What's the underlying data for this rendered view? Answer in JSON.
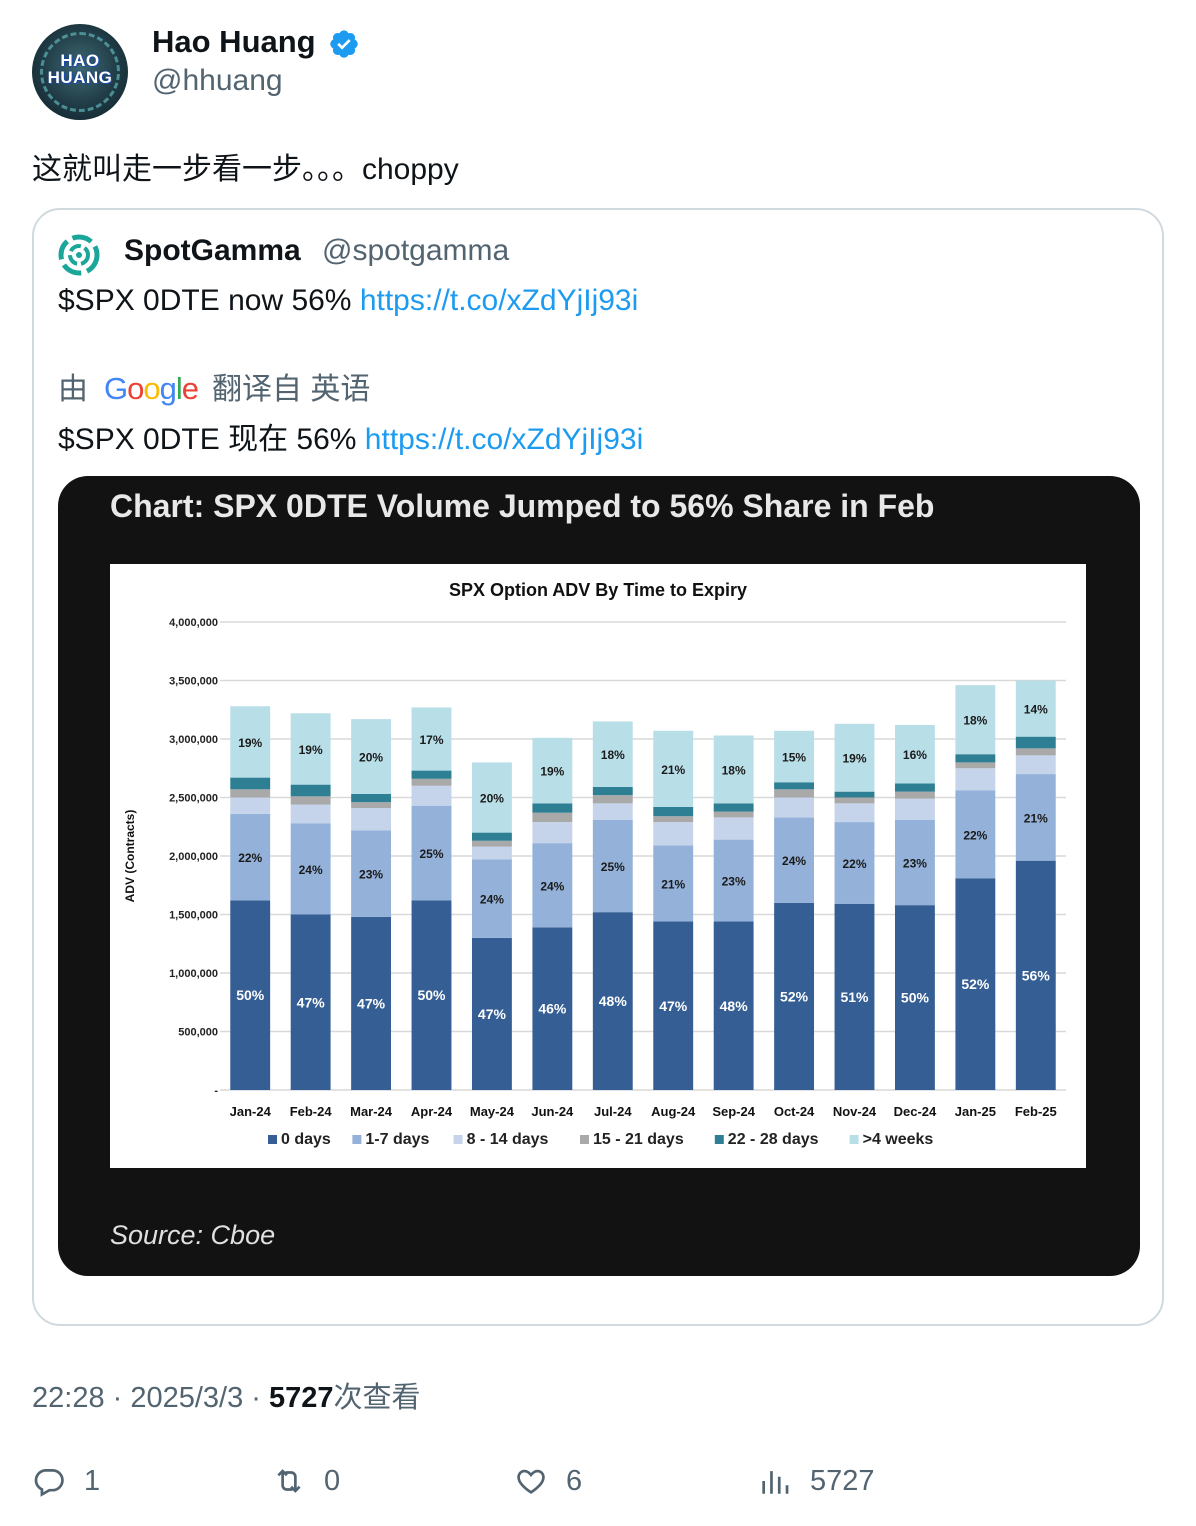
{
  "author": {
    "name": "Hao Huang",
    "handle": "@hhuang",
    "avatar_text_1": "HAO",
    "avatar_text_2": "HUANG",
    "verified_icon": "verified-badge-icon"
  },
  "tweet": {
    "text": "这就叫走一步看一步。。。choppy"
  },
  "quote": {
    "name": "SpotGamma",
    "handle": "@spotgamma",
    "text": "$SPX 0DTE now 56% ",
    "link": "https://t.co/xZdYjIj93i",
    "translation_prefix": "由",
    "translation_brand": "Google",
    "translation_suffix": "翻译自 英语",
    "translated_text": "$SPX 0DTE 现在 56% ",
    "translated_link": "https://t.co/xZdYjIj93i",
    "card_title": "Chart: SPX 0DTE Volume Jumped to 56% Share in Feb",
    "card_source": "Source: Cboe"
  },
  "chart_data": {
    "type": "bar",
    "stacked": true,
    "title": "SPX Option ADV By Time to Expiry",
    "xlabel": "",
    "ylabel": "ADV (Contracts)",
    "ylim": [
      0,
      4000000
    ],
    "yticks": [
      0,
      500000,
      1000000,
      1500000,
      2000000,
      2500000,
      3000000,
      3500000,
      4000000
    ],
    "ytick_labels": [
      "-",
      "500,000",
      "1,000,000",
      "1,500,000",
      "2,000,000",
      "2,500,000",
      "3,000,000",
      "3,500,000",
      "4,000,000"
    ],
    "grid": true,
    "legend": "bottom",
    "categories": [
      "Jan-24",
      "Feb-24",
      "Mar-24",
      "Apr-24",
      "May-24",
      "Jun-24",
      "Jul-24",
      "Aug-24",
      "Sep-24",
      "Oct-24",
      "Nov-24",
      "Dec-24",
      "Jan-25",
      "Feb-25"
    ],
    "series": [
      {
        "name": "0 days",
        "color": "#355f94",
        "values": [
          1620000,
          1500000,
          1480000,
          1620000,
          1300000,
          1390000,
          1520000,
          1440000,
          1440000,
          1600000,
          1590000,
          1580000,
          1810000,
          1960000
        ],
        "labels": [
          "50%",
          "47%",
          "47%",
          "50%",
          "47%",
          "46%",
          "48%",
          "47%",
          "48%",
          "52%",
          "51%",
          "50%",
          "52%",
          "56%"
        ]
      },
      {
        "name": "1-7 days",
        "color": "#93b1d9",
        "values": [
          740000,
          780000,
          740000,
          810000,
          670000,
          720000,
          790000,
          650000,
          700000,
          730000,
          700000,
          730000,
          750000,
          740000
        ],
        "labels": [
          "22%",
          "24%",
          "23%",
          "25%",
          "24%",
          "24%",
          "25%",
          "21%",
          "23%",
          "24%",
          "22%",
          "23%",
          "22%",
          "21%"
        ]
      },
      {
        "name": "8 - 14 days",
        "color": "#c5d4ea",
        "values": [
          140000,
          160000,
          190000,
          170000,
          110000,
          180000,
          140000,
          200000,
          190000,
          170000,
          160000,
          180000,
          190000,
          160000
        ],
        "labels": [
          "",
          "",
          "",
          "",
          "",
          "",
          "",
          "",
          "",
          "",
          "",
          "",
          "",
          ""
        ]
      },
      {
        "name": "15 - 21 days",
        "color": "#a9a9a9",
        "values": [
          70000,
          70000,
          50000,
          60000,
          50000,
          80000,
          70000,
          50000,
          50000,
          70000,
          50000,
          60000,
          50000,
          60000
        ],
        "labels": [
          "",
          "",
          "",
          "",
          "",
          "",
          "",
          "",
          "",
          "",
          "",
          "",
          "",
          ""
        ]
      },
      {
        "name": "22 - 28 days",
        "color": "#2e7f94",
        "values": [
          100000,
          100000,
          70000,
          70000,
          70000,
          80000,
          70000,
          80000,
          70000,
          60000,
          50000,
          70000,
          70000,
          100000
        ],
        "labels": [
          "",
          "",
          "",
          "",
          "",
          "",
          "",
          "",
          "",
          "",
          "",
          "",
          "",
          ""
        ]
      },
      {
        "name": ">4 weeks",
        "color": "#b8dee8",
        "values": [
          610000,
          610000,
          640000,
          540000,
          600000,
          560000,
          560000,
          650000,
          580000,
          440000,
          580000,
          500000,
          590000,
          480000
        ],
        "labels": [
          "19%",
          "19%",
          "20%",
          "17%",
          "20%",
          "19%",
          "18%",
          "21%",
          "18%",
          "15%",
          "19%",
          "16%",
          "18%",
          "14%"
        ]
      }
    ]
  },
  "meta": {
    "time": "22:28 · 2025/3/3 · ",
    "views_count": "5727",
    "views_label": "次查看"
  },
  "actions": {
    "reply_count": "1",
    "retweet_count": "0",
    "like_count": "6",
    "views_count": "5727"
  }
}
